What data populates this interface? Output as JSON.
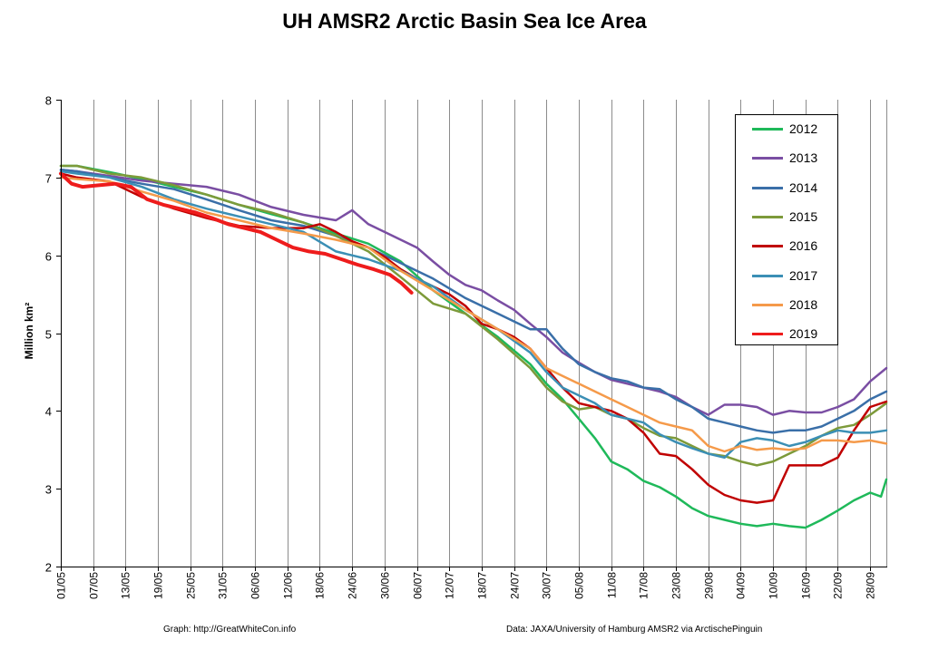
{
  "chart_data": {
    "type": "line",
    "title": "UH AMSR2 Arctic Basin Sea Ice Area",
    "ylabel": "Million km²",
    "xlabel": "",
    "ylim": [
      2,
      8
    ],
    "yticks": [
      "2",
      "3",
      "4",
      "5",
      "6",
      "7",
      "8"
    ],
    "xticks": [
      "01/05",
      "07/05",
      "13/05",
      "19/05",
      "25/05",
      "31/05",
      "06/06",
      "12/06",
      "18/06",
      "24/06",
      "30/06",
      "06/07",
      "12/07",
      "18/07",
      "24/07",
      "30/07",
      "05/08",
      "11/08",
      "17/08",
      "23/08",
      "29/08",
      "04/09",
      "10/09",
      "16/09",
      "22/09",
      "28/09"
    ],
    "x_range": [
      "01/05",
      "01/10"
    ],
    "grid": "vertical gridlines",
    "legend_position": "top-right",
    "series": [
      {
        "name": "2012",
        "color": "#1fb95a",
        "width": 2.5,
        "x": [
          "01/05",
          "04/05",
          "10/05",
          "16/05",
          "22/05",
          "28/05",
          "03/06",
          "09/06",
          "15/06",
          "21/06",
          "27/06",
          "03/07",
          "09/07",
          "15/07",
          "21/07",
          "27/07",
          "30/07",
          "02/08",
          "05/08",
          "08/08",
          "11/08",
          "14/08",
          "17/08",
          "20/08",
          "23/08",
          "26/08",
          "29/08",
          "01/09",
          "04/09",
          "07/09",
          "10/09",
          "13/09",
          "16/09",
          "19/09",
          "22/09",
          "25/09",
          "28/09",
          "30/09",
          "01/10"
        ],
        "values": [
          7.15,
          7.15,
          7.07,
          6.98,
          6.88,
          6.78,
          6.65,
          6.53,
          6.42,
          6.28,
          6.15,
          5.92,
          5.55,
          5.25,
          4.95,
          4.6,
          4.35,
          4.15,
          3.9,
          3.65,
          3.35,
          3.25,
          3.1,
          3.02,
          2.9,
          2.75,
          2.65,
          2.6,
          2.55,
          2.52,
          2.55,
          2.52,
          2.5,
          2.6,
          2.72,
          2.85,
          2.95,
          2.9,
          3.12
        ]
      },
      {
        "name": "2013",
        "color": "#7a4ea3",
        "width": 2.5,
        "x": [
          "01/05",
          "04/05",
          "10/05",
          "16/05",
          "22/05",
          "28/05",
          "03/06",
          "09/06",
          "15/06",
          "21/06",
          "24/06",
          "27/06",
          "30/06",
          "03/07",
          "06/07",
          "09/07",
          "12/07",
          "15/07",
          "18/07",
          "21/07",
          "24/07",
          "27/07",
          "30/07",
          "02/08",
          "05/08",
          "08/08",
          "11/08",
          "14/08",
          "17/08",
          "20/08",
          "23/08",
          "26/08",
          "29/08",
          "01/09",
          "04/09",
          "07/09",
          "10/09",
          "13/09",
          "16/09",
          "19/09",
          "22/09",
          "25/09",
          "28/09",
          "01/10"
        ],
        "values": [
          7.1,
          7.08,
          7.02,
          6.96,
          6.92,
          6.88,
          6.78,
          6.62,
          6.52,
          6.45,
          6.58,
          6.4,
          6.3,
          6.2,
          6.1,
          5.92,
          5.75,
          5.62,
          5.55,
          5.42,
          5.3,
          5.12,
          4.95,
          4.75,
          4.62,
          4.5,
          4.4,
          4.35,
          4.3,
          4.25,
          4.18,
          4.05,
          3.95,
          4.08,
          4.08,
          4.05,
          3.95,
          4.0,
          3.98,
          3.98,
          4.05,
          4.15,
          4.38,
          4.55
        ]
      },
      {
        "name": "2014",
        "color": "#3a6fa8",
        "width": 2.5,
        "x": [
          "01/05",
          "04/05",
          "10/05",
          "16/05",
          "22/05",
          "28/05",
          "03/06",
          "09/06",
          "15/06",
          "21/06",
          "27/06",
          "03/07",
          "09/07",
          "15/07",
          "21/07",
          "27/07",
          "30/07",
          "02/08",
          "05/08",
          "08/08",
          "11/08",
          "14/08",
          "17/08",
          "20/08",
          "23/08",
          "26/08",
          "29/08",
          "01/09",
          "04/09",
          "07/09",
          "10/09",
          "13/09",
          "16/09",
          "19/09",
          "22/09",
          "25/09",
          "28/09",
          "01/10"
        ],
        "values": [
          7.1,
          7.08,
          7.0,
          6.92,
          6.85,
          6.72,
          6.58,
          6.45,
          6.38,
          6.25,
          6.1,
          5.9,
          5.7,
          5.45,
          5.25,
          5.05,
          5.05,
          4.8,
          4.6,
          4.5,
          4.42,
          4.38,
          4.3,
          4.28,
          4.15,
          4.05,
          3.9,
          3.85,
          3.8,
          3.75,
          3.72,
          3.75,
          3.75,
          3.8,
          3.9,
          4.0,
          4.15,
          4.25
        ]
      },
      {
        "name": "2015",
        "color": "#7d9a3a",
        "width": 2.5,
        "x": [
          "01/05",
          "04/05",
          "10/05",
          "16/05",
          "22/05",
          "28/05",
          "03/06",
          "09/06",
          "15/06",
          "21/06",
          "27/06",
          "03/07",
          "09/07",
          "15/07",
          "21/07",
          "27/07",
          "30/07",
          "02/08",
          "05/08",
          "08/08",
          "11/08",
          "14/08",
          "17/08",
          "20/08",
          "23/08",
          "26/08",
          "29/08",
          "01/09",
          "04/09",
          "07/09",
          "10/09",
          "13/09",
          "16/09",
          "19/09",
          "22/09",
          "25/09",
          "28/09",
          "01/10"
        ],
        "values": [
          7.15,
          7.15,
          7.05,
          7.0,
          6.9,
          6.78,
          6.65,
          6.55,
          6.42,
          6.25,
          6.05,
          5.72,
          5.38,
          5.25,
          4.92,
          4.55,
          4.3,
          4.12,
          4.02,
          4.05,
          3.95,
          3.9,
          3.78,
          3.68,
          3.65,
          3.55,
          3.45,
          3.42,
          3.35,
          3.3,
          3.35,
          3.45,
          3.55,
          3.68,
          3.78,
          3.82,
          3.95,
          4.1
        ]
      },
      {
        "name": "2016",
        "color": "#c00000",
        "width": 2.5,
        "x": [
          "01/05",
          "04/05",
          "10/05",
          "16/05",
          "22/05",
          "28/05",
          "03/06",
          "09/06",
          "15/06",
          "18/06",
          "21/06",
          "24/06",
          "27/06",
          "30/06",
          "03/07",
          "06/07",
          "09/07",
          "12/07",
          "15/07",
          "18/07",
          "21/07",
          "24/07",
          "27/07",
          "30/07",
          "02/08",
          "05/08",
          "08/08",
          "11/08",
          "14/08",
          "17/08",
          "20/08",
          "23/08",
          "26/08",
          "29/08",
          "01/09",
          "04/09",
          "07/09",
          "10/09",
          "13/09",
          "16/09",
          "19/09",
          "22/09",
          "25/09",
          "28/09",
          "01/10"
        ],
        "values": [
          7.05,
          7.0,
          6.95,
          6.75,
          6.6,
          6.48,
          6.38,
          6.35,
          6.35,
          6.4,
          6.3,
          6.18,
          6.1,
          5.98,
          5.82,
          5.7,
          5.6,
          5.5,
          5.35,
          5.12,
          5.05,
          4.95,
          4.8,
          4.55,
          4.3,
          4.1,
          4.05,
          4.0,
          3.9,
          3.72,
          3.45,
          3.42,
          3.25,
          3.05,
          2.92,
          2.85,
          2.82,
          2.85,
          3.3,
          3.3,
          3.3,
          3.4,
          3.75,
          4.05,
          4.12
        ]
      },
      {
        "name": "2017",
        "color": "#3b8fb5",
        "width": 2.5,
        "x": [
          "01/05",
          "04/05",
          "10/05",
          "16/05",
          "22/05",
          "28/05",
          "03/06",
          "09/06",
          "15/06",
          "21/06",
          "27/06",
          "03/07",
          "09/07",
          "15/07",
          "21/07",
          "27/07",
          "30/07",
          "02/08",
          "05/08",
          "08/08",
          "11/08",
          "14/08",
          "17/08",
          "20/08",
          "23/08",
          "26/08",
          "29/08",
          "01/09",
          "04/09",
          "07/09",
          "10/09",
          "13/09",
          "16/09",
          "19/09",
          "22/09",
          "25/09",
          "28/09",
          "01/10"
        ],
        "values": [
          7.08,
          7.05,
          7.0,
          6.88,
          6.72,
          6.6,
          6.5,
          6.4,
          6.3,
          6.05,
          5.95,
          5.8,
          5.6,
          5.3,
          5.05,
          4.75,
          4.5,
          4.3,
          4.2,
          4.1,
          3.95,
          3.9,
          3.85,
          3.7,
          3.6,
          3.52,
          3.45,
          3.4,
          3.6,
          3.65,
          3.62,
          3.55,
          3.6,
          3.68,
          3.75,
          3.72,
          3.72,
          3.75
        ]
      },
      {
        "name": "2018",
        "color": "#f59a4a",
        "width": 2.5,
        "x": [
          "01/05",
          "04/05",
          "10/05",
          "16/05",
          "22/05",
          "28/05",
          "03/06",
          "09/06",
          "15/06",
          "21/06",
          "27/06",
          "03/07",
          "09/07",
          "15/07",
          "21/07",
          "27/07",
          "30/07",
          "02/08",
          "05/08",
          "08/08",
          "11/08",
          "14/08",
          "17/08",
          "20/08",
          "23/08",
          "26/08",
          "29/08",
          "01/09",
          "04/09",
          "07/09",
          "10/09",
          "13/09",
          "16/09",
          "19/09",
          "22/09",
          "25/09",
          "28/09",
          "01/10"
        ],
        "values": [
          7.0,
          6.98,
          6.95,
          6.82,
          6.7,
          6.55,
          6.45,
          6.35,
          6.28,
          6.2,
          6.1,
          5.8,
          5.55,
          5.3,
          5.05,
          4.8,
          4.55,
          4.45,
          4.35,
          4.25,
          4.15,
          4.05,
          3.95,
          3.85,
          3.8,
          3.75,
          3.55,
          3.48,
          3.55,
          3.5,
          3.52,
          3.5,
          3.52,
          3.62,
          3.62,
          3.6,
          3.62,
          3.58
        ]
      },
      {
        "name": "2019",
        "color": "#ee1c1c",
        "width": 4,
        "x": [
          "01/05",
          "03/05",
          "05/05",
          "08/05",
          "11/05",
          "14/05",
          "17/05",
          "20/05",
          "23/05",
          "26/05",
          "29/05",
          "01/06",
          "04/06",
          "07/06",
          "10/06",
          "13/06",
          "16/06",
          "19/06",
          "22/06",
          "25/06",
          "28/06",
          "01/07",
          "03/07",
          "05/07"
        ],
        "values": [
          7.05,
          6.92,
          6.88,
          6.9,
          6.92,
          6.88,
          6.72,
          6.65,
          6.6,
          6.55,
          6.48,
          6.4,
          6.35,
          6.3,
          6.2,
          6.1,
          6.05,
          6.02,
          5.95,
          5.88,
          5.82,
          5.75,
          5.65,
          5.52
        ]
      }
    ]
  },
  "footer": {
    "left": "Graph: http://GreatWhiteCon.info",
    "right": "Data: JAXA/University of Hamburg AMSR2 via ArctischePinguin"
  }
}
